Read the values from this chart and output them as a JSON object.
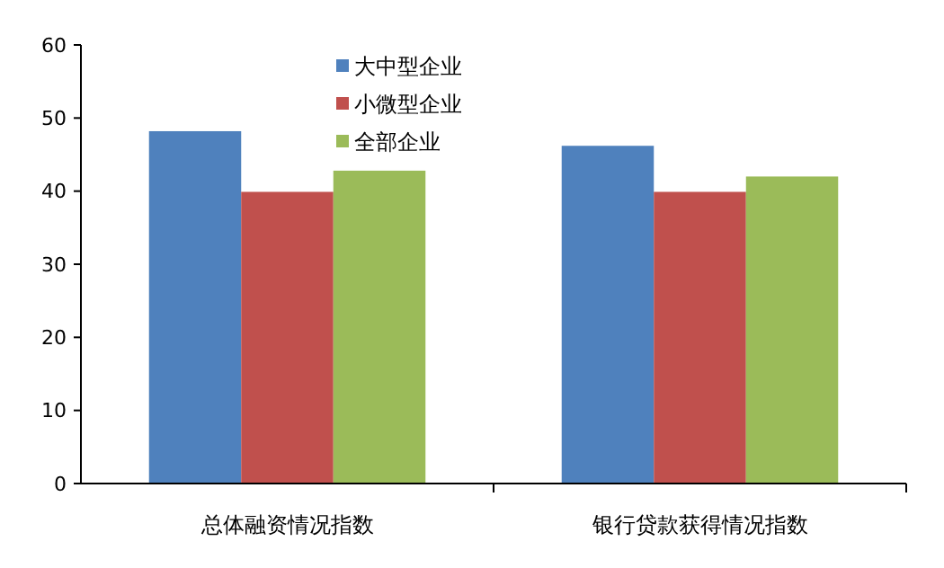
{
  "chart_data": {
    "type": "bar",
    "categories": [
      "总体融资情况指数",
      "银行贷款获得情况指数"
    ],
    "series": [
      {
        "name": "大中型企业",
        "color": "#4f81bd",
        "values": [
          48.2,
          46.2
        ]
      },
      {
        "name": "小微型企业",
        "color": "#c0504d",
        "values": [
          39.9,
          39.9
        ]
      },
      {
        "name": "全部企业",
        "color": "#9bbb59",
        "values": [
          42.8,
          42.0
        ]
      }
    ],
    "ylim": [
      0,
      60
    ],
    "yticks": [
      0,
      10,
      20,
      30,
      40,
      50,
      60
    ],
    "grid": false,
    "legend": "top"
  }
}
